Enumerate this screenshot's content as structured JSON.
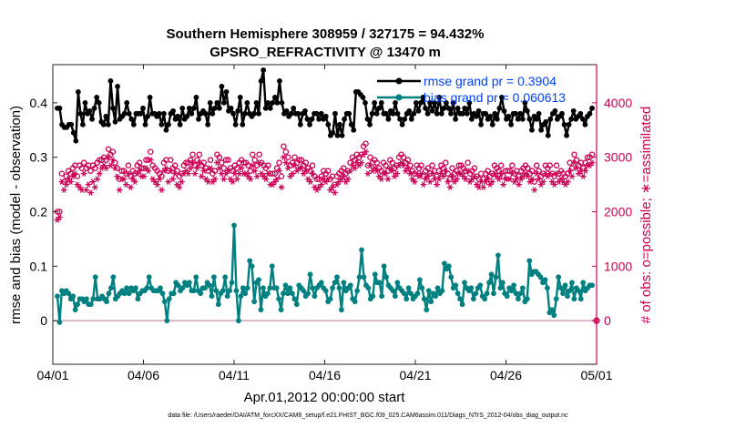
{
  "chart_data": {
    "type": "line",
    "title_line1": "Southern Hemisphere 308959 / 327175 = 94.432%",
    "title_line2": "GPSRO_REFRACTIVITY @ 13470 m",
    "xlabel": "Apr.01,2012 00:00:00 start",
    "ylabel_left": "rmse and bias (model - observation)",
    "ylabel_right": "# of obs: o=possible; ∗=assimilated",
    "footer": "data file: /Users/raeder/DAI/ATM_forcXX/CAM6_setup/f.e21.FHIST_BGC.f09_025.CAM6assim.011/Diags_NTrS_2012-04/obs_diag_output.nc",
    "x_ticks": [
      "04/01",
      "04/06",
      "04/11",
      "04/16",
      "04/21",
      "04/26",
      "05/01"
    ],
    "x_range_days": [
      0,
      30
    ],
    "ylim_left": [
      -0.08,
      0.47
    ],
    "yticks_left": [
      "0",
      "0.1",
      "0.2",
      "0.3",
      "0.4"
    ],
    "ylim_right": [
      -800,
      4700
    ],
    "yticks_right": [
      "0",
      "1000",
      "2000",
      "3000",
      "4000"
    ],
    "legend": [
      {
        "label": "rmse grand pr = 0.3904",
        "color": "#000000"
      },
      {
        "label": "bias grand pr = 0.060613",
        "color": "#008080"
      }
    ],
    "colors": {
      "rmse": "#000000",
      "bias": "#008080",
      "obs": "#cc0055",
      "zero_line": "#d9a0b8",
      "text_blue": "#0040ff"
    },
    "series": [
      {
        "name": "rmse",
        "axis": "left",
        "values": [
          0.39,
          0.39,
          0.36,
          0.355,
          0.355,
          0.36,
          0.36,
          0.345,
          0.33,
          0.42,
          0.38,
          0.36,
          0.4,
          0.38,
          0.385,
          0.37,
          0.39,
          0.41,
          0.4,
          0.365,
          0.36,
          0.375,
          0.36,
          0.44,
          0.39,
          0.365,
          0.43,
          0.37,
          0.375,
          0.38,
          0.4,
          0.38,
          0.37,
          0.36,
          0.38,
          0.38,
          0.38,
          0.39,
          0.36,
          0.375,
          0.41,
          0.38,
          0.38,
          0.375,
          0.38,
          0.36,
          0.38,
          0.35,
          0.36,
          0.38,
          0.385,
          0.37,
          0.375,
          0.36,
          0.39,
          0.37,
          0.375,
          0.39,
          0.38,
          0.39,
          0.41,
          0.37,
          0.38,
          0.385,
          0.38,
          0.36,
          0.4,
          0.38,
          0.39,
          0.4,
          0.39,
          0.43,
          0.4,
          0.42,
          0.385,
          0.39,
          0.38,
          0.36,
          0.385,
          0.41,
          0.36,
          0.38,
          0.4,
          0.38,
          0.375,
          0.38,
          0.4,
          0.38,
          0.44,
          0.46,
          0.39,
          0.4,
          0.39,
          0.4,
          0.41,
          0.4,
          0.44,
          0.4,
          0.38,
          0.385,
          0.375,
          0.38,
          0.39,
          0.38,
          0.38,
          0.36,
          0.38,
          0.385,
          0.37,
          0.36,
          0.37,
          0.38,
          0.38,
          0.37,
          0.38,
          0.37,
          0.375,
          0.36,
          0.34,
          0.345,
          0.38,
          0.34,
          0.36,
          0.34,
          0.37,
          0.38,
          0.38,
          0.36,
          0.35,
          0.42,
          0.42,
          0.415,
          0.41,
          0.4,
          0.37,
          0.36,
          0.38,
          0.4,
          0.38,
          0.39,
          0.4,
          0.38,
          0.38,
          0.37,
          0.385,
          0.38,
          0.4,
          0.38,
          0.37,
          0.36,
          0.37,
          0.38,
          0.385,
          0.37,
          0.38,
          0.4,
          0.385,
          0.4,
          0.41,
          0.39,
          0.38,
          0.4,
          0.385,
          0.4,
          0.38,
          0.41,
          0.38,
          0.39,
          0.4,
          0.39,
          0.38,
          0.4,
          0.37,
          0.39,
          0.38,
          0.38,
          0.39,
          0.38,
          0.4,
          0.37,
          0.38,
          0.375,
          0.385,
          0.36,
          0.38,
          0.38,
          0.37,
          0.375,
          0.36,
          0.38,
          0.37,
          0.39,
          0.41,
          0.385,
          0.37,
          0.375,
          0.36,
          0.38,
          0.38,
          0.37,
          0.38,
          0.37,
          0.4,
          0.385,
          0.37,
          0.35,
          0.375,
          0.37,
          0.38,
          0.35,
          0.36,
          0.365,
          0.34,
          0.37,
          0.38,
          0.385,
          0.37,
          0.375,
          0.38,
          0.36,
          0.34,
          0.36,
          0.37,
          0.385,
          0.37,
          0.375,
          0.38,
          0.37,
          0.36,
          0.375,
          0.38,
          0.39
        ]
      },
      {
        "name": "bias",
        "axis": "left",
        "values": [
          0.045,
          -0.003,
          0.055,
          0.05,
          0.055,
          0.05,
          0.04,
          0.045,
          0.02,
          0.03,
          0.04,
          0.04,
          0.035,
          0.04,
          0.03,
          0.03,
          0.04,
          0.08,
          0.04,
          0.04,
          0.045,
          0.04,
          0.035,
          0.05,
          0.06,
          0.08,
          0.04,
          0.045,
          0.05,
          0.055,
          0.05,
          0.06,
          0.05,
          0.06,
          0.055,
          0.06,
          0.04,
          0.05,
          0.055,
          0.055,
          0.06,
          0.08,
          0.06,
          0.055,
          0.055,
          0.055,
          0.06,
          0.05,
          0.035,
          0.0,
          0.04,
          0.05,
          0.05,
          0.07,
          0.065,
          0.055,
          0.06,
          0.07,
          0.065,
          0.07,
          0.055,
          0.055,
          0.08,
          0.055,
          0.05,
          0.06,
          0.06,
          0.07,
          0.065,
          0.045,
          0.08,
          0.055,
          0.03,
          0.05,
          0.055,
          0.08,
          0.045,
          0.055,
          0.07,
          0.175,
          0.055,
          0.0,
          0.045,
          0.06,
          0.05,
          0.06,
          0.11,
          0.1,
          0.035,
          0.07,
          0.075,
          0.02,
          0.06,
          0.045,
          0.05,
          0.06,
          0.1,
          0.06,
          0.06,
          0.04,
          0.02,
          0.05,
          0.065,
          0.05,
          0.06,
          0.05,
          0.04,
          0.03,
          0.065,
          0.06,
          0.055,
          0.045,
          0.05,
          0.085,
          0.06,
          0.045,
          0.06,
          0.065,
          0.07,
          0.06,
          0.055,
          0.035,
          0.04,
          0.06,
          0.07,
          0.08,
          0.06,
          0.02,
          0.07,
          0.055,
          0.06,
          0.065,
          0.04,
          0.035,
          0.055,
          0.08,
          0.13,
          0.08,
          0.065,
          0.06,
          0.04,
          0.045,
          0.085,
          0.07,
          0.07,
          0.045,
          0.1,
          0.08,
          0.065,
          0.06,
          0.055,
          0.045,
          0.07,
          0.06,
          0.055,
          0.05,
          0.04,
          0.06,
          0.05,
          0.04,
          0.045,
          0.05,
          0.075,
          0.06,
          0.04,
          0.02,
          0.055,
          0.035,
          0.05,
          0.045,
          0.06,
          0.05,
          0.055,
          0.105,
          0.095,
          0.1,
          0.08,
          0.06,
          0.065,
          0.05,
          0.04,
          0.03,
          0.07,
          0.06,
          0.055,
          0.06,
          0.04,
          0.05,
          0.06,
          0.065,
          0.045,
          0.04,
          0.05,
          0.07,
          0.085,
          0.05,
          0.08,
          0.12,
          0.06,
          0.07,
          0.05,
          0.045,
          0.06,
          0.055,
          0.065,
          0.05,
          0.04,
          0.05,
          0.06,
          0.035,
          0.04,
          0.11,
          0.085,
          0.09,
          0.09,
          0.085,
          0.08,
          0.07,
          0.075,
          0.06,
          0.015,
          0.02,
          0.01,
          0.04,
          0.08,
          0.06,
          0.05,
          0.065,
          0.045,
          0.055,
          0.07,
          0.04,
          0.06,
          0.055,
          0.04,
          0.07,
          0.055,
          0.06,
          0.065,
          0.065
        ]
      },
      {
        "name": "obs_possible",
        "axis": "right",
        "values": [
          2000,
          2000,
          2700,
          2550,
          2650,
          2750,
          2700,
          2800,
          2850,
          2650,
          2850,
          2800,
          2900,
          2800,
          2850,
          2750,
          2850,
          2800,
          2900,
          2950,
          2950,
          3000,
          2950,
          3150,
          3050,
          3100,
          2900,
          2800,
          2600,
          2750,
          2750,
          2700,
          2850,
          2650,
          2750,
          2700,
          2850,
          2900,
          2800,
          2800,
          2950,
          2950,
          3100,
          2850,
          2800,
          2750,
          2700,
          2650,
          2900,
          2950,
          2750,
          2950,
          2800,
          2850,
          2750,
          2650,
          2700,
          2850,
          2900,
          2900,
          2950,
          3050,
          2850,
          2950,
          3050,
          2850,
          2900,
          2800,
          2750,
          2950,
          2700,
          2750,
          3050,
          3000,
          2900,
          2800,
          2950,
          2950,
          2800,
          2750,
          2850,
          2800,
          2900,
          2950,
          2900,
          2900,
          2850,
          2750,
          3050,
          2950,
          2850,
          3050,
          2900,
          2850,
          2800,
          2850,
          2700,
          2700,
          2700,
          2800,
          2900,
          2650,
          3200,
          3100,
          3000,
          2850,
          2900,
          3000,
          2900,
          2950,
          2950,
          2850,
          2900,
          2800,
          2750,
          2850,
          2650,
          2600,
          2600,
          2650,
          2750,
          2700,
          2750,
          2600,
          2650,
          2500,
          2650,
          2700,
          2750,
          2800,
          2700,
          2750,
          2900,
          3000,
          2950,
          3050,
          3000,
          3050,
          3200,
          3250,
          2850,
          3000,
          2900,
          2950,
          2900,
          2800,
          2750,
          2900,
          2850,
          2750,
          2950,
          2900,
          2800,
          2850,
          3000,
          3050,
          3000,
          2900,
          2950,
          2850,
          2750,
          2700,
          2850,
          2800,
          2850,
          2650,
          2750,
          2800,
          2700,
          2850,
          2750,
          2650,
          2750,
          2850,
          2800,
          2900,
          2700,
          2600,
          2800,
          2700,
          2750,
          2850,
          2850,
          2800,
          2750,
          2900,
          2700,
          2750,
          2800,
          2650,
          2600,
          2700,
          2600,
          2700,
          2750,
          2650,
          2700,
          2850,
          2800,
          2750,
          2850,
          2650,
          2750,
          2750,
          2750,
          2850,
          2700,
          2750,
          2650,
          2750,
          2800,
          2850,
          2800,
          2700,
          2750,
          2550,
          2850,
          2750,
          2650,
          2700,
          2850,
          2800,
          2850,
          2700,
          2650,
          2850,
          2700,
          2750,
          2700,
          2650,
          2700,
          2900,
          2800,
          3050,
          2950,
          2850,
          2900,
          2800,
          2900,
          3000,
          3000,
          3050
        ]
      },
      {
        "name": "obs_assimilated",
        "axis": "right",
        "values": [
          1850,
          1900,
          2550,
          2400,
          2500,
          2600,
          2550,
          2650,
          2700,
          2500,
          2450,
          2400,
          2700,
          2400,
          2500,
          2350,
          2550,
          2450,
          2600,
          2700,
          2800,
          2850,
          2800,
          3000,
          2850,
          2950,
          2800,
          2650,
          2400,
          2600,
          2600,
          2500,
          2700,
          2450,
          2600,
          2550,
          2700,
          2750,
          2650,
          2650,
          2800,
          2750,
          2950,
          2600,
          2550,
          2500,
          2600,
          2400,
          2750,
          2800,
          2550,
          2750,
          2600,
          2700,
          2500,
          2450,
          2550,
          2700,
          2750,
          2700,
          2800,
          2900,
          2700,
          2800,
          2900,
          2650,
          2750,
          2600,
          2550,
          2800,
          2550,
          2600,
          2900,
          2800,
          2700,
          2600,
          2700,
          2750,
          2600,
          2550,
          2700,
          2600,
          2700,
          2800,
          2700,
          2700,
          2650,
          2600,
          2850,
          2750,
          2650,
          2900,
          2700,
          2650,
          2600,
          2700,
          2500,
          2500,
          2550,
          2600,
          2750,
          2450,
          3000,
          2900,
          2800,
          2650,
          2700,
          2850,
          2750,
          2800,
          2800,
          2700,
          2750,
          2600,
          2550,
          2700,
          2450,
          2400,
          2450,
          2500,
          2600,
          2550,
          2600,
          2400,
          2450,
          2350,
          2500,
          2550,
          2600,
          2650,
          2550,
          2600,
          2750,
          2850,
          2800,
          2900,
          2850,
          2900,
          3050,
          3100,
          2700,
          2850,
          2750,
          2800,
          2750,
          2650,
          2600,
          2700,
          2700,
          2600,
          2800,
          2750,
          2650,
          2700,
          2850,
          2900,
          2850,
          2750,
          2800,
          2700,
          2600,
          2550,
          2700,
          2650,
          2700,
          2500,
          2600,
          2650,
          2550,
          2700,
          2600,
          2500,
          2600,
          2700,
          2650,
          2750,
          2550,
          2450,
          2650,
          2550,
          2600,
          2700,
          2700,
          2650,
          2600,
          2750,
          2550,
          2600,
          2650,
          2500,
          2450,
          2550,
          2450,
          2550,
          2600,
          2500,
          2550,
          2700,
          2650,
          2600,
          2700,
          2500,
          2600,
          2600,
          2600,
          2700,
          2550,
          2600,
          2500,
          2600,
          2650,
          2700,
          2650,
          2550,
          2600,
          2400,
          2700,
          2600,
          2500,
          2550,
          2700,
          2650,
          2700,
          2550,
          2500,
          2700,
          2550,
          2600,
          2550,
          2500,
          2550,
          2750,
          2650,
          2900,
          2800,
          2700,
          2750,
          2650,
          2750,
          2850,
          2850,
          2900
        ]
      }
    ],
    "last_obs_value": 0
  }
}
